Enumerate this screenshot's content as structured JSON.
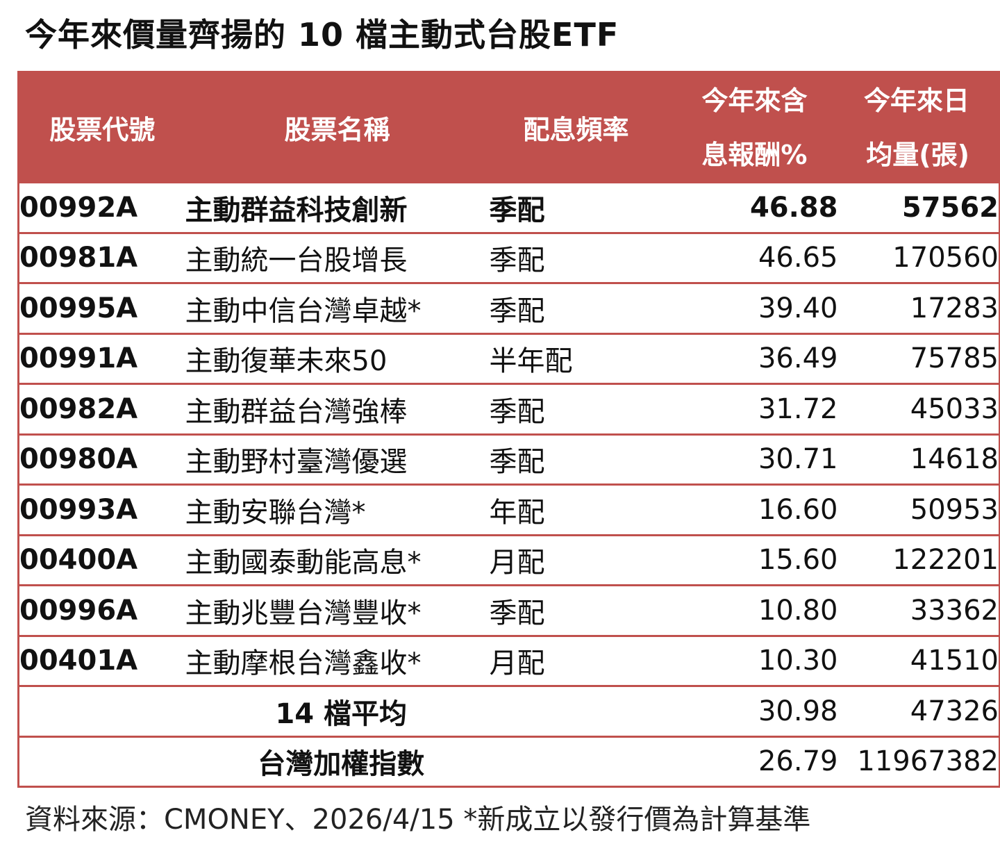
{
  "title": "今年來價量齊揚的 10 檔主動式台股ETF",
  "chart_data": {
    "type": "table",
    "headers": {
      "code": "股票代號",
      "name": "股票名稱",
      "freq": "配息頻率",
      "yield_l1": "今年來含",
      "yield_l2": "息報酬%",
      "vol_l1": "今年來日",
      "vol_l2": "均量(張)"
    },
    "rows": [
      {
        "code": "00992A",
        "name": "主動群益科技創新",
        "freq": "季配",
        "yield": "46.88",
        "volume": "57562"
      },
      {
        "code": "00981A",
        "name": "主動統一台股增長",
        "freq": "季配",
        "yield": "46.65",
        "volume": "170560"
      },
      {
        "code": "00995A",
        "name": "主動中信台灣卓越*",
        "freq": "季配",
        "yield": "39.40",
        "volume": "17283"
      },
      {
        "code": "00991A",
        "name": "主動復華未來50",
        "freq": "半年配",
        "yield": "36.49",
        "volume": "75785"
      },
      {
        "code": "00982A",
        "name": "主動群益台灣強棒",
        "freq": "季配",
        "yield": "31.72",
        "volume": "45033"
      },
      {
        "code": "00980A",
        "name": "主動野村臺灣優選",
        "freq": "季配",
        "yield": "30.71",
        "volume": "14618"
      },
      {
        "code": "00993A",
        "name": "主動安聯台灣*",
        "freq": "年配",
        "yield": "16.60",
        "volume": "50953"
      },
      {
        "code": "00400A",
        "name": "主動國泰動能高息*",
        "freq": "月配",
        "yield": "15.60",
        "volume": "122201"
      },
      {
        "code": "00996A",
        "name": "主動兆豐台灣豐收*",
        "freq": "季配",
        "yield": "10.80",
        "volume": "33362"
      },
      {
        "code": "00401A",
        "name": "主動摩根台灣鑫收*",
        "freq": "月配",
        "yield": "10.30",
        "volume": "41510"
      }
    ],
    "summary": [
      {
        "label": "14 檔平均",
        "yield": "30.98",
        "volume": "47326"
      },
      {
        "label": "台灣加權指數",
        "yield": "26.79",
        "volume": "11967382"
      }
    ]
  },
  "source": "資料來源：CMONEY、2026/4/15  *新成立以發行價為計算基準",
  "colors": {
    "header_bg": "#c0504d",
    "header_text": "#ffffff",
    "border": "#c0504d"
  }
}
